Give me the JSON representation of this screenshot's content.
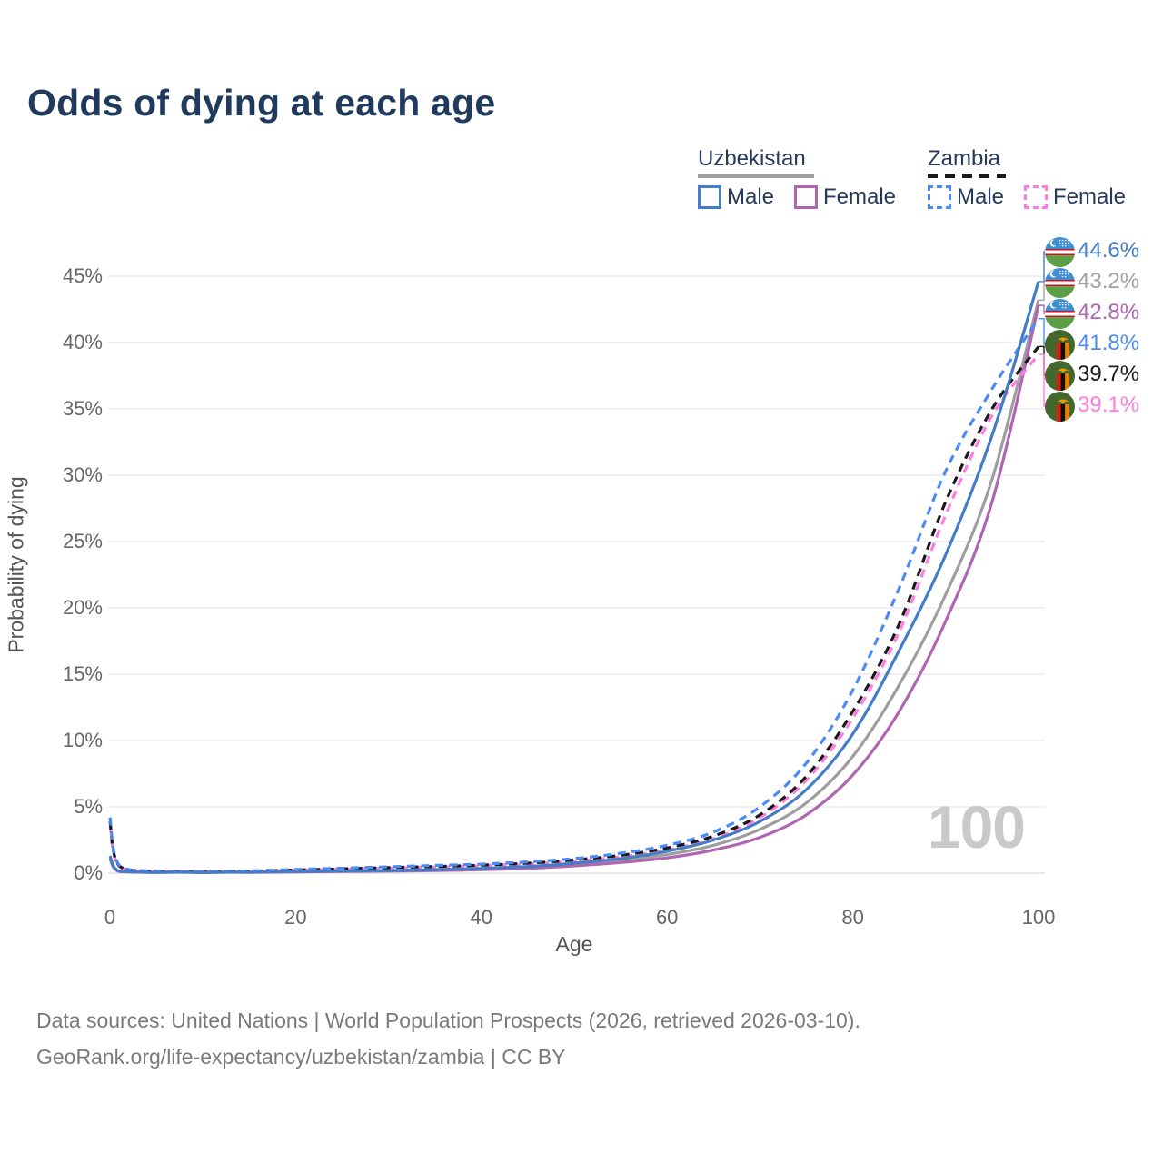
{
  "title": {
    "text": "Odds of dying at each age"
  },
  "legend": {
    "groups": [
      {
        "name": "Uzbekistan",
        "line_style": "solid",
        "line_color": "#9e9e9e",
        "items": [
          {
            "label": "Male",
            "color": "#447dc6"
          },
          {
            "label": "Female",
            "color": "#b065b2"
          }
        ]
      },
      {
        "name": "Zambia",
        "line_style": "dashed",
        "line_color": "#1a1a1a",
        "items": [
          {
            "label": "Male",
            "color": "#4c8bf5"
          },
          {
            "label": "Female",
            "color": "#ff7be0"
          }
        ]
      }
    ]
  },
  "axes": {
    "x": {
      "label": "Age",
      "tick_labels": [
        "0",
        "20",
        "40",
        "60",
        "80",
        "100"
      ],
      "tick_values": [
        0,
        20,
        40,
        60,
        80,
        100
      ]
    },
    "y": {
      "label": "Probability of dying",
      "tick_labels": [
        "0%",
        "5%",
        "10%",
        "15%",
        "20%",
        "25%",
        "30%",
        "35%",
        "40%",
        "45%"
      ],
      "tick_values": [
        0,
        5,
        10,
        15,
        20,
        25,
        30,
        35,
        40,
        45
      ]
    }
  },
  "watermark": {
    "text": "100"
  },
  "end_labels": [
    {
      "value": "44.6%",
      "country": "Uzbekistan",
      "color": "#447dc6"
    },
    {
      "value": "43.2%",
      "country": "Uzbekistan",
      "color": "#a2a2a2"
    },
    {
      "value": "42.8%",
      "country": "Uzbekistan",
      "color": "#b065b2"
    },
    {
      "value": "41.8%",
      "country": "Zambia",
      "color": "#4c8bf5"
    },
    {
      "value": "39.7%",
      "country": "Zambia",
      "color": "#1a1a1a"
    },
    {
      "value": "39.1%",
      "country": "Zambia",
      "color": "#ff7be0"
    }
  ],
  "chart_data": {
    "type": "line",
    "title": "Odds of dying at each age",
    "xlabel": "Age",
    "ylabel": "Probability of dying",
    "xlim": [
      0,
      100
    ],
    "ylim": [
      0,
      47
    ],
    "grid": "horizontal",
    "legend_position": "top-right",
    "x": [
      0,
      1,
      5,
      10,
      15,
      20,
      25,
      30,
      35,
      40,
      45,
      50,
      55,
      60,
      65,
      70,
      75,
      80,
      85,
      90,
      95,
      100
    ],
    "series": [
      {
        "name": "Uzbekistan Male",
        "country": "Uzbekistan",
        "sex": "Male",
        "color": "#447dc6",
        "dash": "solid",
        "end_value_pct": 44.6,
        "values": [
          1.3,
          0.15,
          0.06,
          0.05,
          0.08,
          0.12,
          0.16,
          0.2,
          0.27,
          0.36,
          0.5,
          0.75,
          1.1,
          1.65,
          2.5,
          3.9,
          6.3,
          10.5,
          16.8,
          24.0,
          33.0,
          44.6
        ]
      },
      {
        "name": "Uzbekistan Both sexes",
        "country": "Uzbekistan",
        "sex": "Both",
        "color": "#9e9e9e",
        "dash": "solid",
        "end_value_pct": 43.2,
        "values": [
          1.2,
          0.14,
          0.055,
          0.045,
          0.07,
          0.1,
          0.14,
          0.18,
          0.23,
          0.31,
          0.44,
          0.65,
          0.95,
          1.4,
          2.1,
          3.3,
          5.3,
          8.8,
          14.2,
          21.0,
          29.7,
          43.2
        ]
      },
      {
        "name": "Uzbekistan Female",
        "country": "Uzbekistan",
        "sex": "Female",
        "color": "#b065b2",
        "dash": "solid",
        "end_value_pct": 42.8,
        "values": [
          1.1,
          0.12,
          0.05,
          0.04,
          0.06,
          0.09,
          0.12,
          0.15,
          0.19,
          0.26,
          0.37,
          0.55,
          0.8,
          1.15,
          1.75,
          2.7,
          4.4,
          7.4,
          12.2,
          19.0,
          28.0,
          42.8
        ]
      },
      {
        "name": "Zambia Male",
        "country": "Zambia",
        "sex": "Male",
        "color": "#4c8bf5",
        "dash": "dashed",
        "end_value_pct": 41.8,
        "values": [
          4.2,
          0.6,
          0.15,
          0.12,
          0.18,
          0.28,
          0.38,
          0.48,
          0.58,
          0.68,
          0.85,
          1.1,
          1.5,
          2.1,
          3.1,
          5.0,
          8.3,
          13.8,
          21.5,
          30.3,
          36.5,
          41.8
        ]
      },
      {
        "name": "Zambia Both sexes",
        "country": "Zambia",
        "sex": "Both",
        "color": "#1a1a1a",
        "dash": "dashed",
        "end_value_pct": 39.7,
        "values": [
          3.9,
          0.55,
          0.13,
          0.1,
          0.15,
          0.24,
          0.33,
          0.42,
          0.5,
          0.6,
          0.75,
          1.0,
          1.35,
          1.9,
          2.8,
          4.4,
          7.3,
          12.2,
          18.8,
          28.0,
          35.0,
          39.7
        ]
      },
      {
        "name": "Zambia Female",
        "country": "Zambia",
        "sex": "Female",
        "color": "#ff7be0",
        "dash": "dashed",
        "end_value_pct": 39.1,
        "values": [
          3.6,
          0.5,
          0.12,
          0.09,
          0.14,
          0.22,
          0.3,
          0.38,
          0.46,
          0.55,
          0.7,
          0.9,
          1.25,
          1.75,
          2.6,
          4.2,
          7.0,
          11.7,
          18.2,
          27.0,
          34.5,
          39.1
        ]
      }
    ]
  },
  "footer": {
    "line1": "Data sources: United Nations | World Population Prospects (2026, retrieved 2026-03-10).",
    "line2": "GeoRank.org/life-expectancy/uzbekistan/zambia | CC BY"
  }
}
